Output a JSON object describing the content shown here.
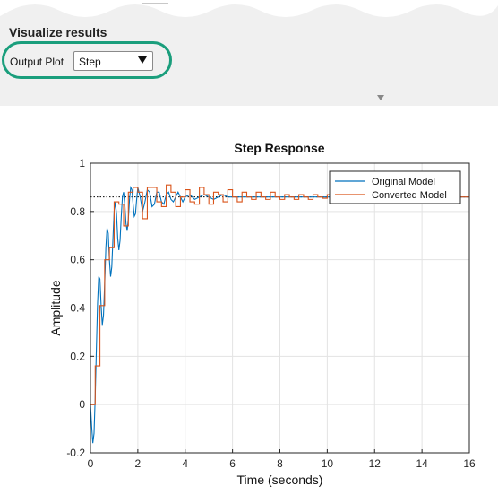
{
  "panel": {
    "section_title": "Visualize results",
    "output_plot_label": "Output Plot",
    "output_plot_value": "Step",
    "dropdown_icon": "triangle-down-icon",
    "collapse_icon": "triangle-down-icon"
  },
  "chart_data": {
    "type": "line",
    "title": "Step Response",
    "xlabel": "Time (seconds)",
    "ylabel": "Amplitude",
    "xlim": [
      0,
      16
    ],
    "ylim": [
      -0.2,
      1
    ],
    "xticks": [
      0,
      2,
      4,
      6,
      8,
      10,
      12,
      14,
      16
    ],
    "yticks": [
      -0.2,
      0,
      0.2,
      0.4,
      0.6,
      0.8,
      1
    ],
    "grid": true,
    "legend_position": "top-right",
    "steady_state": 0.86,
    "series": [
      {
        "name": "Original Model",
        "color": "#0072bd",
        "style": "continuous",
        "samples": {
          "x": [
            0,
            0.05,
            0.1,
            0.15,
            0.2,
            0.25,
            0.3,
            0.35,
            0.4,
            0.45,
            0.5,
            0.55,
            0.6,
            0.65,
            0.7,
            0.75,
            0.8,
            0.85,
            0.9,
            0.95,
            1,
            1.05,
            1.1,
            1.15,
            1.2,
            1.25,
            1.3,
            1.35,
            1.4,
            1.45,
            1.5,
            1.55,
            1.6,
            1.65,
            1.7,
            1.75,
            1.8,
            1.85,
            1.9,
            1.95,
            2,
            2.1,
            2.2,
            2.3,
            2.4,
            2.5,
            2.6,
            2.7,
            2.8,
            2.9,
            3,
            3.1,
            3.2,
            3.3,
            3.4,
            3.5,
            3.6,
            3.7,
            3.8,
            3.9,
            4,
            4.2,
            4.4,
            4.6,
            4.8,
            5,
            5.2,
            5.4,
            5.6,
            5.8,
            6,
            6.5,
            7,
            7.5,
            8,
            8.5,
            9,
            9.5,
            10,
            11,
            12,
            13,
            14,
            15,
            16
          ],
          "y": [
            0,
            -0.09,
            -0.16,
            -0.12,
            0.03,
            0.23,
            0.42,
            0.53,
            0.52,
            0.41,
            0.33,
            0.37,
            0.5,
            0.65,
            0.73,
            0.71,
            0.6,
            0.53,
            0.57,
            0.69,
            0.8,
            0.84,
            0.79,
            0.69,
            0.64,
            0.68,
            0.78,
            0.86,
            0.88,
            0.83,
            0.75,
            0.72,
            0.77,
            0.85,
            0.9,
            0.89,
            0.83,
            0.78,
            0.79,
            0.85,
            0.9,
            0.86,
            0.8,
            0.84,
            0.89,
            0.88,
            0.82,
            0.83,
            0.88,
            0.88,
            0.84,
            0.83,
            0.87,
            0.88,
            0.85,
            0.84,
            0.86,
            0.88,
            0.86,
            0.84,
            0.86,
            0.87,
            0.85,
            0.86,
            0.87,
            0.86,
            0.85,
            0.86,
            0.87,
            0.86,
            0.86,
            0.86,
            0.86,
            0.86,
            0.86,
            0.86,
            0.86,
            0.86,
            0.86,
            0.86,
            0.86,
            0.86,
            0.86,
            0.86,
            0.86
          ]
        }
      },
      {
        "name": "Converted Model",
        "color": "#d95319",
        "style": "stairs",
        "step": 0.2,
        "values": [
          0,
          0.16,
          0.41,
          0.6,
          0.65,
          0.84,
          0.83,
          0.74,
          0.88,
          0.9,
          0.88,
          0.77,
          0.9,
          0.9,
          0.84,
          0.82,
          0.91,
          0.88,
          0.82,
          0.86,
          0.89,
          0.84,
          0.83,
          0.9,
          0.87,
          0.83,
          0.88,
          0.87,
          0.84,
          0.89,
          0.86,
          0.84,
          0.88,
          0.86,
          0.85,
          0.88,
          0.86,
          0.85,
          0.88,
          0.86,
          0.85,
          0.87,
          0.86,
          0.85,
          0.87,
          0.86,
          0.85,
          0.87,
          0.86,
          0.855,
          0.87,
          0.86,
          0.855,
          0.87,
          0.86,
          0.855,
          0.865,
          0.86,
          0.86,
          0.865,
          0.86,
          0.86,
          0.865,
          0.86,
          0.86,
          0.865,
          0.86,
          0.86,
          0.86,
          0.86,
          0.86,
          0.86,
          0.86,
          0.86,
          0.86,
          0.86,
          0.86,
          0.86,
          0.86,
          0.86,
          0.86
        ]
      }
    ]
  }
}
